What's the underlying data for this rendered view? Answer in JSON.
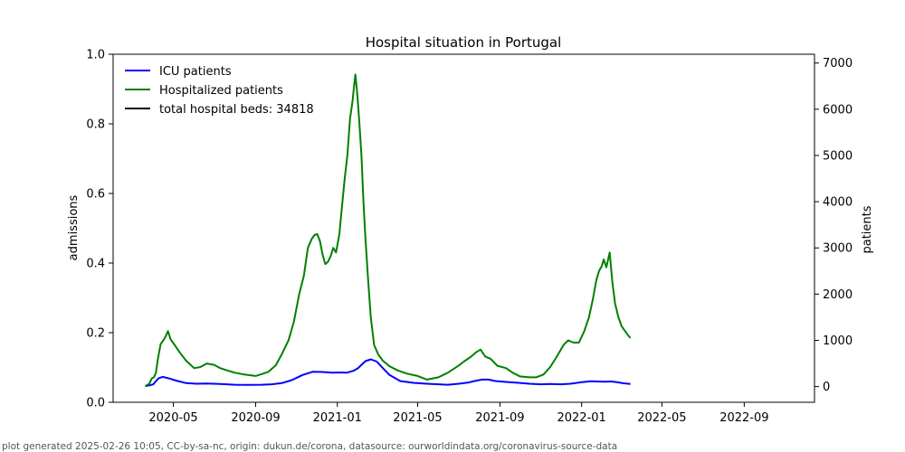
{
  "footer": "plot generated 2025-02-26 10:05, CC-by-sa-nc, origin: dukun.de/corona, datasource: ourworldindata.org/coronavirus-source-data",
  "chart_data": {
    "type": "line",
    "title": "Hospital situation in Portugal",
    "ylabel_left": "admissions",
    "ylabel_right": "patients",
    "ylim_left": [
      0.0,
      1.0
    ],
    "ylim_right": [
      -340,
      7190
    ],
    "left_ticks": [
      "0.0",
      "0.2",
      "0.4",
      "0.6",
      "0.8",
      "1.0"
    ],
    "right_ticks": [
      "0",
      "1000",
      "2000",
      "3000",
      "4000",
      "5000",
      "6000",
      "7000"
    ],
    "xlim": [
      "2020-02-01",
      "2022-12-15"
    ],
    "x_ticks": [
      "2020-05",
      "2020-09",
      "2021-01",
      "2021-05",
      "2021-09",
      "2022-01",
      "2022-05",
      "2022-09"
    ],
    "legend": {
      "location": "top-left",
      "entries": [
        {
          "label": "ICU patients",
          "color": "#0000ff"
        },
        {
          "label": "Hospitalized patients",
          "color": "#008000"
        },
        {
          "label": "total hospital beds: 34818",
          "color": "#000000"
        }
      ]
    },
    "series": [
      {
        "name": "ICU patients",
        "axis": "right",
        "color": "#0000ff",
        "x": [
          "2020-03-20",
          "2020-03-26",
          "2020-04-01",
          "2020-04-05",
          "2020-04-09",
          "2020-04-15",
          "2020-04-25",
          "2020-05-05",
          "2020-05-20",
          "2020-06-05",
          "2020-06-20",
          "2020-07-10",
          "2020-08-01",
          "2020-08-20",
          "2020-09-10",
          "2020-09-25",
          "2020-10-10",
          "2020-10-25",
          "2020-11-10",
          "2020-11-25",
          "2020-12-10",
          "2020-12-25",
          "2021-01-05",
          "2021-01-15",
          "2021-01-25",
          "2021-02-01",
          "2021-02-06",
          "2021-02-12",
          "2021-02-20",
          "2021-03-01",
          "2021-03-10",
          "2021-03-20",
          "2021-04-05",
          "2021-04-25",
          "2021-05-15",
          "2021-06-01",
          "2021-06-15",
          "2021-07-01",
          "2021-07-15",
          "2021-07-25",
          "2021-08-05",
          "2021-08-15",
          "2021-08-25",
          "2021-09-10",
          "2021-09-25",
          "2021-10-15",
          "2021-11-01",
          "2021-11-15",
          "2021-12-01",
          "2021-12-15",
          "2022-01-01",
          "2022-01-15",
          "2022-01-25",
          "2022-02-05",
          "2022-02-15",
          "2022-02-25",
          "2022-03-05",
          "2022-03-15"
        ],
        "values": [
          10,
          25,
          50,
          120,
          180,
          210,
          175,
          130,
          75,
          60,
          65,
          55,
          40,
          35,
          40,
          50,
          75,
          140,
          250,
          320,
          315,
          300,
          305,
          300,
          340,
          400,
          470,
          550,
          590,
          540,
          400,
          250,
          120,
          80,
          60,
          50,
          40,
          60,
          85,
          120,
          150,
          150,
          120,
          100,
          85,
          60,
          50,
          55,
          50,
          60,
          95,
          115,
          110,
          105,
          110,
          90,
          70,
          55
        ]
      },
      {
        "name": "Hospitalized patients",
        "axis": "right",
        "color": "#008000",
        "x": [
          "2020-03-20",
          "2020-03-26",
          "2020-03-30",
          "2020-04-02",
          "2020-04-05",
          "2020-04-08",
          "2020-04-12",
          "2020-04-16",
          "2020-04-20",
          "2020-04-23",
          "2020-04-27",
          "2020-05-03",
          "2020-05-10",
          "2020-05-20",
          "2020-06-01",
          "2020-06-10",
          "2020-06-20",
          "2020-07-01",
          "2020-07-10",
          "2020-07-20",
          "2020-08-01",
          "2020-08-15",
          "2020-09-01",
          "2020-09-10",
          "2020-09-20",
          "2020-10-01",
          "2020-10-10",
          "2020-10-20",
          "2020-10-28",
          "2020-11-05",
          "2020-11-12",
          "2020-11-18",
          "2020-11-24",
          "2020-11-28",
          "2020-12-02",
          "2020-12-06",
          "2020-12-10",
          "2020-12-14",
          "2020-12-18",
          "2020-12-22",
          "2020-12-26",
          "2020-12-30",
          "2021-01-04",
          "2021-01-08",
          "2021-01-12",
          "2021-01-16",
          "2021-01-20",
          "2021-01-24",
          "2021-01-26",
          "2021-01-28",
          "2021-01-31",
          "2021-02-03",
          "2021-02-06",
          "2021-02-09",
          "2021-02-12",
          "2021-02-16",
          "2021-02-20",
          "2021-02-25",
          "2021-03-03",
          "2021-03-10",
          "2021-03-20",
          "2021-04-01",
          "2021-04-15",
          "2021-05-01",
          "2021-05-15",
          "2021-06-01",
          "2021-06-15",
          "2021-07-01",
          "2021-07-10",
          "2021-07-20",
          "2021-07-28",
          "2021-08-03",
          "2021-08-10",
          "2021-08-18",
          "2021-08-28",
          "2021-09-10",
          "2021-09-20",
          "2021-10-01",
          "2021-10-15",
          "2021-10-25",
          "2021-11-05",
          "2021-11-15",
          "2021-11-25",
          "2021-12-05",
          "2021-12-12",
          "2021-12-20",
          "2021-12-28",
          "2022-01-05",
          "2022-01-12",
          "2022-01-18",
          "2022-01-23",
          "2022-01-27",
          "2022-01-31",
          "2022-02-03",
          "2022-02-07",
          "2022-02-12",
          "2022-02-16",
          "2022-02-20",
          "2022-02-25",
          "2022-03-02",
          "2022-03-07",
          "2022-03-12",
          "2022-03-15"
        ],
        "values": [
          10,
          60,
          180,
          200,
          300,
          600,
          920,
          1000,
          1100,
          1200,
          1020,
          900,
          750,
          560,
          400,
          420,
          500,
          470,
          400,
          350,
          300,
          260,
          230,
          270,
          320,
          460,
          700,
          1000,
          1400,
          2000,
          2400,
          3000,
          3200,
          3280,
          3300,
          3150,
          2850,
          2650,
          2700,
          2820,
          3000,
          2900,
          3300,
          3900,
          4500,
          5000,
          5800,
          6200,
          6500,
          6750,
          6300,
          5700,
          5000,
          4000,
          3200,
          2300,
          1500,
          900,
          700,
          560,
          440,
          350,
          280,
          230,
          150,
          200,
          300,
          450,
          550,
          650,
          750,
          800,
          650,
          600,
          450,
          400,
          300,
          220,
          200,
          200,
          260,
          420,
          650,
          900,
          1000,
          950,
          950,
          1200,
          1500,
          1900,
          2300,
          2500,
          2600,
          2750,
          2580,
          2900,
          2250,
          1800,
          1500,
          1300,
          1200,
          1100,
          1050
        ]
      }
    ]
  }
}
